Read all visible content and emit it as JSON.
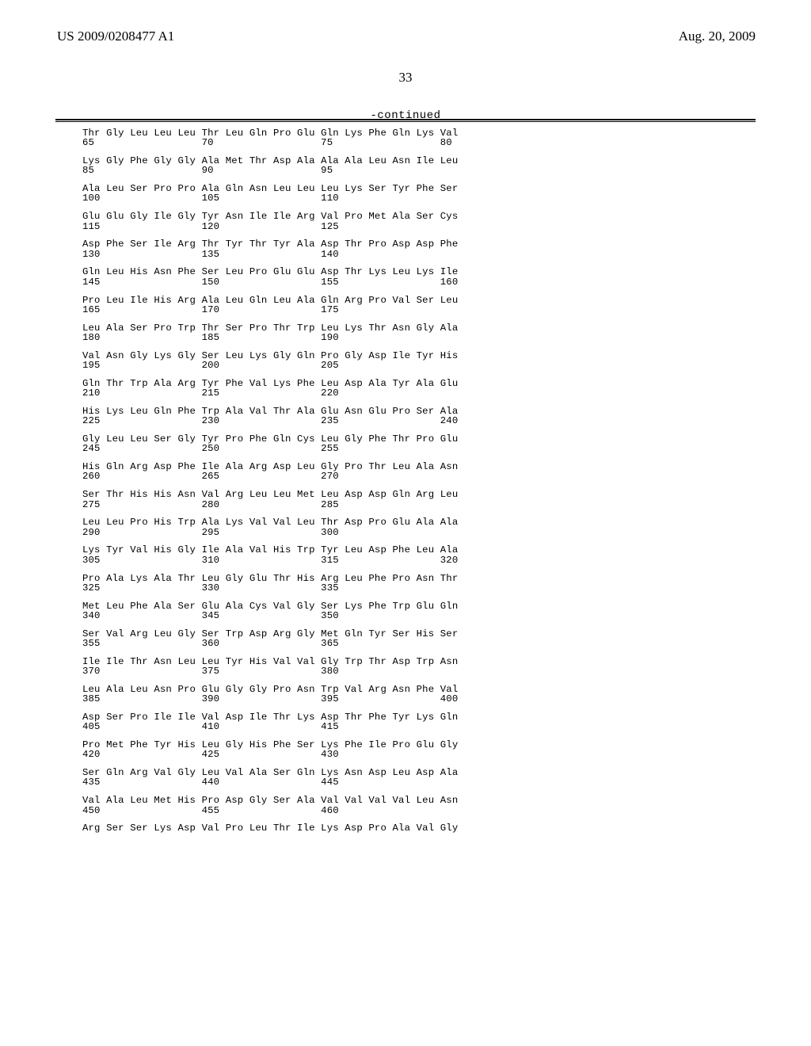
{
  "header": {
    "left": "US 2009/0208477 A1",
    "right": "Aug. 20, 2009"
  },
  "page_number": "33",
  "continued": "-continued",
  "sequence_blocks": [
    {
      "aa": "Thr Gly Leu Leu Leu Thr Leu Gln Pro Glu Gln Lys Phe Gln Lys Val",
      "nums": "65                  70                  75                  80"
    },
    {
      "aa": "Lys Gly Phe Gly Gly Ala Met Thr Asp Ala Ala Ala Leu Asn Ile Leu",
      "nums": "85                  90                  95"
    },
    {
      "aa": "Ala Leu Ser Pro Pro Ala Gln Asn Leu Leu Leu Lys Ser Tyr Phe Ser",
      "nums": "100                 105                 110"
    },
    {
      "aa": "Glu Glu Gly Ile Gly Tyr Asn Ile Ile Arg Val Pro Met Ala Ser Cys",
      "nums": "115                 120                 125"
    },
    {
      "aa": "Asp Phe Ser Ile Arg Thr Tyr Thr Tyr Ala Asp Thr Pro Asp Asp Phe",
      "nums": "130                 135                 140"
    },
    {
      "aa": "Gln Leu His Asn Phe Ser Leu Pro Glu Glu Asp Thr Lys Leu Lys Ile",
      "nums": "145                 150                 155                 160"
    },
    {
      "aa": "Pro Leu Ile His Arg Ala Leu Gln Leu Ala Gln Arg Pro Val Ser Leu",
      "nums": "165                 170                 175"
    },
    {
      "aa": "Leu Ala Ser Pro Trp Thr Ser Pro Thr Trp Leu Lys Thr Asn Gly Ala",
      "nums": "180                 185                 190"
    },
    {
      "aa": "Val Asn Gly Lys Gly Ser Leu Lys Gly Gln Pro Gly Asp Ile Tyr His",
      "nums": "195                 200                 205"
    },
    {
      "aa": "Gln Thr Trp Ala Arg Tyr Phe Val Lys Phe Leu Asp Ala Tyr Ala Glu",
      "nums": "210                 215                 220"
    },
    {
      "aa": "His Lys Leu Gln Phe Trp Ala Val Thr Ala Glu Asn Glu Pro Ser Ala",
      "nums": "225                 230                 235                 240"
    },
    {
      "aa": "Gly Leu Leu Ser Gly Tyr Pro Phe Gln Cys Leu Gly Phe Thr Pro Glu",
      "nums": "245                 250                 255"
    },
    {
      "aa": "His Gln Arg Asp Phe Ile Ala Arg Asp Leu Gly Pro Thr Leu Ala Asn",
      "nums": "260                 265                 270"
    },
    {
      "aa": "Ser Thr His His Asn Val Arg Leu Leu Met Leu Asp Asp Gln Arg Leu",
      "nums": "275                 280                 285"
    },
    {
      "aa": "Leu Leu Pro His Trp Ala Lys Val Val Leu Thr Asp Pro Glu Ala Ala",
      "nums": "290                 295                 300"
    },
    {
      "aa": "Lys Tyr Val His Gly Ile Ala Val His Trp Tyr Leu Asp Phe Leu Ala",
      "nums": "305                 310                 315                 320"
    },
    {
      "aa": "Pro Ala Lys Ala Thr Leu Gly Glu Thr His Arg Leu Phe Pro Asn Thr",
      "nums": "325                 330                 335"
    },
    {
      "aa": "Met Leu Phe Ala Ser Glu Ala Cys Val Gly Ser Lys Phe Trp Glu Gln",
      "nums": "340                 345                 350"
    },
    {
      "aa": "Ser Val Arg Leu Gly Ser Trp Asp Arg Gly Met Gln Tyr Ser His Ser",
      "nums": "355                 360                 365"
    },
    {
      "aa": "Ile Ile Thr Asn Leu Leu Tyr His Val Val Gly Trp Thr Asp Trp Asn",
      "nums": "370                 375                 380"
    },
    {
      "aa": "Leu Ala Leu Asn Pro Glu Gly Gly Pro Asn Trp Val Arg Asn Phe Val",
      "nums": "385                 390                 395                 400"
    },
    {
      "aa": "Asp Ser Pro Ile Ile Val Asp Ile Thr Lys Asp Thr Phe Tyr Lys Gln",
      "nums": "405                 410                 415"
    },
    {
      "aa": "Pro Met Phe Tyr His Leu Gly His Phe Ser Lys Phe Ile Pro Glu Gly",
      "nums": "420                 425                 430"
    },
    {
      "aa": "Ser Gln Arg Val Gly Leu Val Ala Ser Gln Lys Asn Asp Leu Asp Ala",
      "nums": "435                 440                 445"
    },
    {
      "aa": "Val Ala Leu Met His Pro Asp Gly Ser Ala Val Val Val Val Leu Asn",
      "nums": "450                 455                 460"
    },
    {
      "aa": "Arg Ser Ser Lys Asp Val Pro Leu Thr Ile Lys Asp Pro Ala Val Gly",
      "nums": ""
    }
  ]
}
